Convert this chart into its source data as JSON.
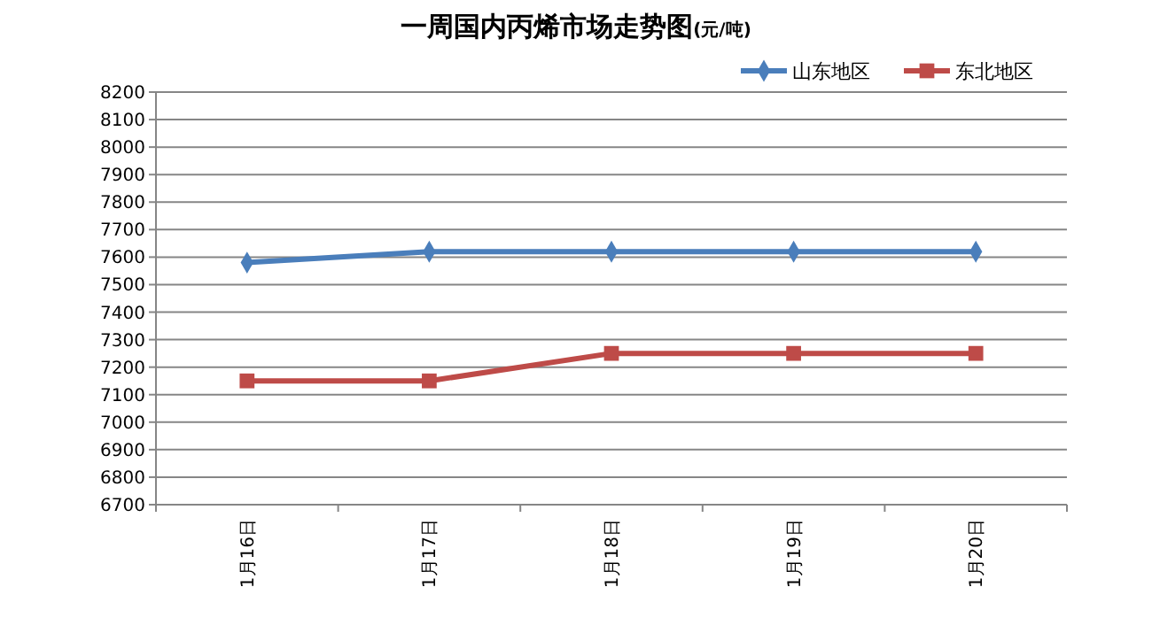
{
  "chart_data": {
    "type": "line",
    "title": "一周国内丙烯市场走势图",
    "subtitle": "(元/吨)",
    "categories": [
      "1月16日",
      "1月17日",
      "1月18日",
      "1月19日",
      "1月20日"
    ],
    "series": [
      {
        "name": "山东地区",
        "color": "#4a7ebb",
        "marker": "diamond",
        "values": [
          7580,
          7620,
          7620,
          7620,
          7620
        ]
      },
      {
        "name": "东北地区",
        "color": "#be4b48",
        "marker": "square",
        "values": [
          7150,
          7150,
          7250,
          7250,
          7250
        ]
      }
    ],
    "ylim": [
      6700,
      8200
    ],
    "yticks": [
      6700,
      6800,
      6900,
      7000,
      7100,
      7200,
      7300,
      7400,
      7500,
      7600,
      7700,
      7800,
      7900,
      8000,
      8100,
      8200
    ],
    "grid": "y",
    "legend": "top right"
  }
}
